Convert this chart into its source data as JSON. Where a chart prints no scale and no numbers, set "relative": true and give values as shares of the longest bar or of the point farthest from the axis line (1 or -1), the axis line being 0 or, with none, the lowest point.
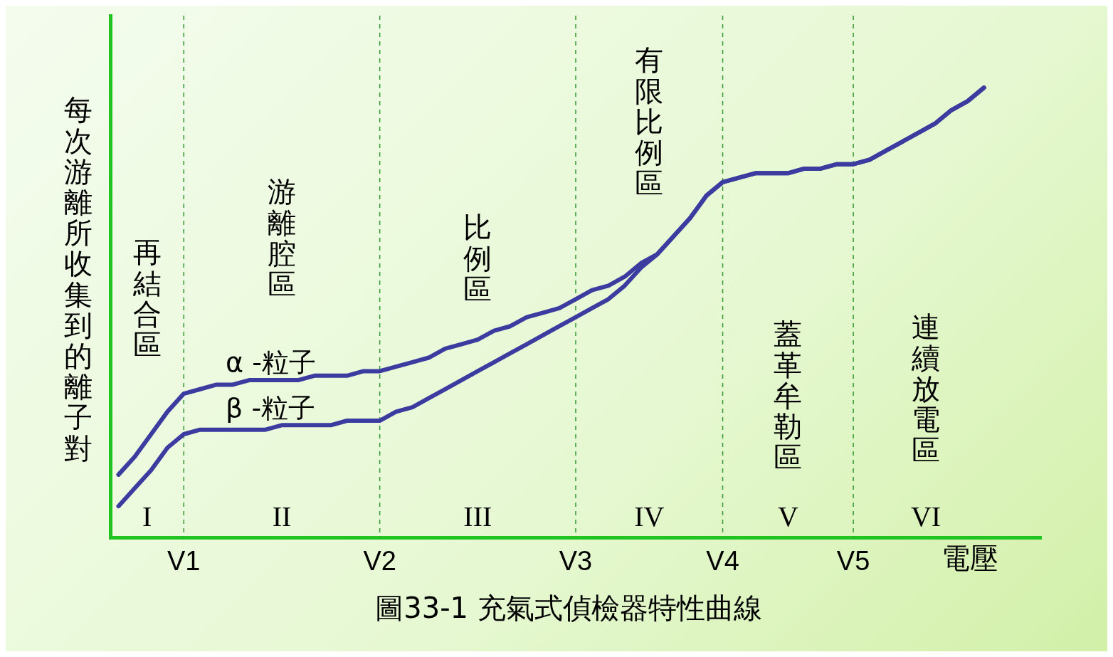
{
  "chart_data": {
    "type": "line",
    "title": "圖33-1 充氣式偵檢器特性曲線",
    "ylabel": "每次游離所收集到的離子對",
    "xlabel": "電壓",
    "relative": true,
    "legend": false,
    "grid": false,
    "marker": "none",
    "line_style": "solid",
    "categories": [
      null,
      null,
      null,
      null,
      "V1",
      null,
      null,
      null,
      null,
      null,
      null,
      null,
      null,
      null,
      null,
      null,
      "V2",
      null,
      null,
      null,
      null,
      null,
      null,
      null,
      null,
      null,
      null,
      null,
      "V3",
      null,
      null,
      null,
      null,
      null,
      null,
      null,
      null,
      "V4",
      null,
      null,
      null,
      null,
      null,
      null,
      null,
      "V5",
      null,
      null,
      null,
      null,
      null,
      null,
      null,
      null,
      null,
      null,
      null
    ],
    "series": [
      {
        "name": "α -粒子",
        "color": "#3c3ca0",
        "values": [
          0.14,
          0.18,
          0.23,
          0.28,
          0.32,
          0.33,
          0.34,
          0.34,
          0.35,
          0.35,
          0.35,
          0.35,
          0.36,
          0.36,
          0.36,
          0.37,
          0.37,
          0.38,
          0.39,
          0.4,
          0.42,
          0.43,
          0.44,
          0.46,
          0.47,
          0.49,
          0.5,
          0.51,
          0.53,
          0.55,
          0.56,
          0.58,
          0.61,
          0.63,
          0.67,
          0.71,
          0.76,
          0.79,
          0.8,
          0.81,
          0.81,
          0.81,
          0.82,
          0.82,
          0.83,
          0.83,
          0.84,
          0.86,
          0.88,
          0.9,
          0.92,
          0.95,
          0.97,
          1,
          null,
          null,
          null
        ]
      },
      {
        "name": "β -粒子",
        "color": "#3c3ca0",
        "values": [
          0.07,
          0.11,
          0.15,
          0.2,
          0.23,
          0.24,
          0.24,
          0.24,
          0.24,
          0.24,
          0.25,
          0.25,
          0.25,
          0.25,
          0.26,
          0.26,
          0.26,
          0.28,
          0.29,
          0.31,
          0.33,
          0.35,
          0.37,
          0.39,
          0.41,
          0.43,
          0.45,
          0.47,
          0.49,
          0.51,
          0.53,
          0.56,
          0.6,
          0.63,
          0.67,
          0.71,
          0.76,
          0.79,
          0.8,
          0.81,
          0.81,
          0.81,
          0.82,
          0.82,
          0.83,
          0.83,
          0.84,
          0.86,
          0.88,
          0.9,
          0.92,
          0.95,
          0.97,
          1,
          null,
          null,
          null
        ]
      }
    ],
    "ref_lines": [
      {
        "axis": "x",
        "value": "V1",
        "color": "#339933",
        "line_style": "dashed"
      },
      {
        "axis": "x",
        "value": "V2",
        "color": "#339933",
        "line_style": "dashed"
      },
      {
        "axis": "x",
        "value": "V3",
        "color": "#339933",
        "line_style": "dashed"
      },
      {
        "axis": "x",
        "value": "V4",
        "color": "#339933",
        "line_style": "dashed"
      },
      {
        "axis": "x",
        "value": "V5",
        "color": "#339933",
        "line_style": "dashed"
      }
    ],
    "annotations": [
      "再結合區",
      "I",
      "游離腔區",
      "II",
      "比例區",
      "III",
      "有限比例區",
      "IV",
      "蓋革牟勒區",
      "V",
      "連續放電區",
      "VI"
    ]
  }
}
